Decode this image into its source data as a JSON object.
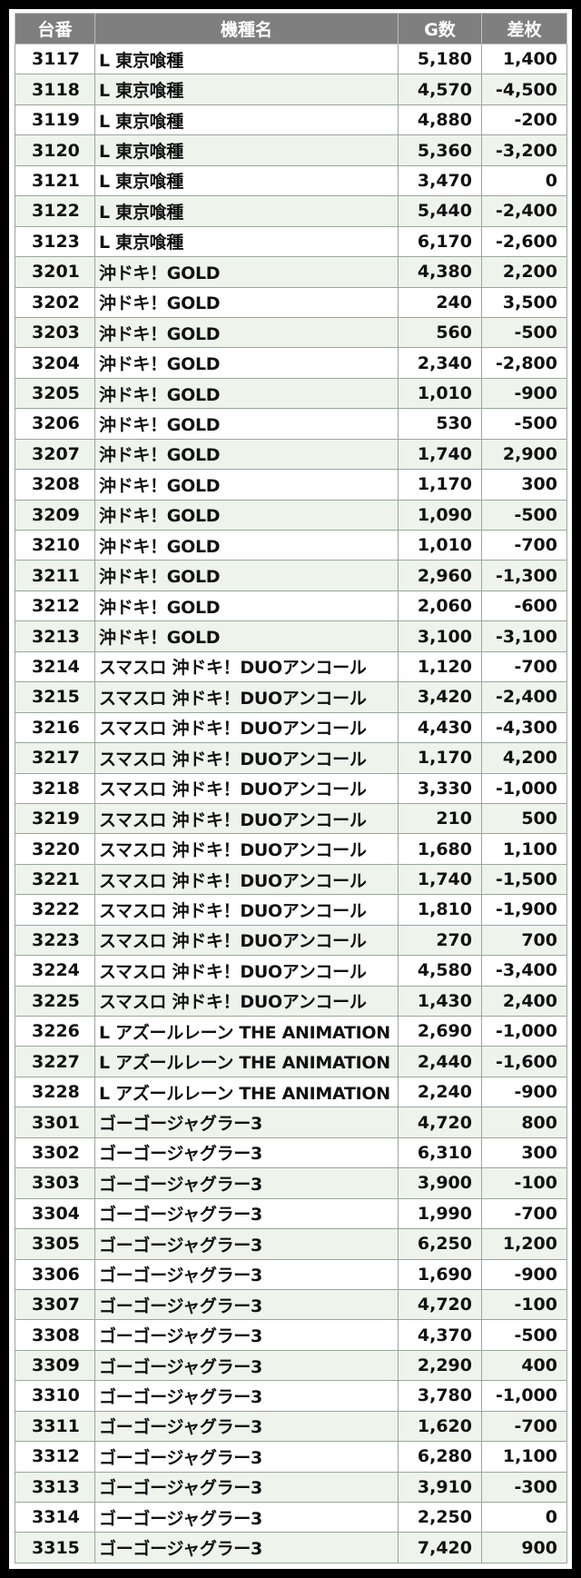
{
  "columns": {
    "no": "台番",
    "name": "機種名",
    "g": "G数",
    "diff": "差枚"
  },
  "rows": [
    {
      "no": "3117",
      "name": "L 東京喰種",
      "g": "5,180",
      "diff": "1,400"
    },
    {
      "no": "3118",
      "name": "L 東京喰種",
      "g": "4,570",
      "diff": "-4,500"
    },
    {
      "no": "3119",
      "name": "L 東京喰種",
      "g": "4,880",
      "diff": "-200"
    },
    {
      "no": "3120",
      "name": "L 東京喰種",
      "g": "5,360",
      "diff": "-3,200"
    },
    {
      "no": "3121",
      "name": "L 東京喰種",
      "g": "3,470",
      "diff": "0"
    },
    {
      "no": "3122",
      "name": "L 東京喰種",
      "g": "5,440",
      "diff": "-2,400"
    },
    {
      "no": "3123",
      "name": "L 東京喰種",
      "g": "6,170",
      "diff": "-2,600"
    },
    {
      "no": "3201",
      "name": "沖ドキ！GOLD",
      "g": "4,380",
      "diff": "2,200"
    },
    {
      "no": "3202",
      "name": "沖ドキ！GOLD",
      "g": "240",
      "diff": "3,500"
    },
    {
      "no": "3203",
      "name": "沖ドキ！GOLD",
      "g": "560",
      "diff": "-500"
    },
    {
      "no": "3204",
      "name": "沖ドキ！GOLD",
      "g": "2,340",
      "diff": "-2,800"
    },
    {
      "no": "3205",
      "name": "沖ドキ！GOLD",
      "g": "1,010",
      "diff": "-900"
    },
    {
      "no": "3206",
      "name": "沖ドキ！GOLD",
      "g": "530",
      "diff": "-500"
    },
    {
      "no": "3207",
      "name": "沖ドキ！GOLD",
      "g": "1,740",
      "diff": "2,900"
    },
    {
      "no": "3208",
      "name": "沖ドキ！GOLD",
      "g": "1,170",
      "diff": "300"
    },
    {
      "no": "3209",
      "name": "沖ドキ！GOLD",
      "g": "1,090",
      "diff": "-500"
    },
    {
      "no": "3210",
      "name": "沖ドキ！GOLD",
      "g": "1,010",
      "diff": "-700"
    },
    {
      "no": "3211",
      "name": "沖ドキ！GOLD",
      "g": "2,960",
      "diff": "-1,300"
    },
    {
      "no": "3212",
      "name": "沖ドキ！GOLD",
      "g": "2,060",
      "diff": "-600"
    },
    {
      "no": "3213",
      "name": "沖ドキ！GOLD",
      "g": "3,100",
      "diff": "-3,100"
    },
    {
      "no": "3214",
      "name": "スマスロ 沖ドキ！DUOアンコール",
      "g": "1,120",
      "diff": "-700"
    },
    {
      "no": "3215",
      "name": "スマスロ 沖ドキ！DUOアンコール",
      "g": "3,420",
      "diff": "-2,400"
    },
    {
      "no": "3216",
      "name": "スマスロ 沖ドキ！DUOアンコール",
      "g": "4,430",
      "diff": "-4,300"
    },
    {
      "no": "3217",
      "name": "スマスロ 沖ドキ！DUOアンコール",
      "g": "1,170",
      "diff": "4,200"
    },
    {
      "no": "3218",
      "name": "スマスロ 沖ドキ！DUOアンコール",
      "g": "3,330",
      "diff": "-1,000"
    },
    {
      "no": "3219",
      "name": "スマスロ 沖ドキ！DUOアンコール",
      "g": "210",
      "diff": "500"
    },
    {
      "no": "3220",
      "name": "スマスロ 沖ドキ！DUOアンコール",
      "g": "1,680",
      "diff": "1,100"
    },
    {
      "no": "3221",
      "name": "スマスロ 沖ドキ！DUOアンコール",
      "g": "1,740",
      "diff": "-1,500"
    },
    {
      "no": "3222",
      "name": "スマスロ 沖ドキ！DUOアンコール",
      "g": "1,810",
      "diff": "-1,900"
    },
    {
      "no": "3223",
      "name": "スマスロ 沖ドキ！DUOアンコール",
      "g": "270",
      "diff": "700"
    },
    {
      "no": "3224",
      "name": "スマスロ 沖ドキ！DUOアンコール",
      "g": "4,580",
      "diff": "-3,400"
    },
    {
      "no": "3225",
      "name": "スマスロ 沖ドキ！DUOアンコール",
      "g": "1,430",
      "diff": "2,400"
    },
    {
      "no": "3226",
      "name": "L アズールレーン THE ANIMATION",
      "g": "2,690",
      "diff": "-1,000"
    },
    {
      "no": "3227",
      "name": "L アズールレーン THE ANIMATION",
      "g": "2,440",
      "diff": "-1,600"
    },
    {
      "no": "3228",
      "name": "L アズールレーン THE ANIMATION",
      "g": "2,240",
      "diff": "-900"
    },
    {
      "no": "3301",
      "name": "ゴーゴージャグラー3",
      "g": "4,720",
      "diff": "800"
    },
    {
      "no": "3302",
      "name": "ゴーゴージャグラー3",
      "g": "6,310",
      "diff": "300"
    },
    {
      "no": "3303",
      "name": "ゴーゴージャグラー3",
      "g": "3,900",
      "diff": "-100"
    },
    {
      "no": "3304",
      "name": "ゴーゴージャグラー3",
      "g": "1,990",
      "diff": "-700"
    },
    {
      "no": "3305",
      "name": "ゴーゴージャグラー3",
      "g": "6,250",
      "diff": "1,200"
    },
    {
      "no": "3306",
      "name": "ゴーゴージャグラー3",
      "g": "1,690",
      "diff": "-900"
    },
    {
      "no": "3307",
      "name": "ゴーゴージャグラー3",
      "g": "4,720",
      "diff": "-100"
    },
    {
      "no": "3308",
      "name": "ゴーゴージャグラー3",
      "g": "4,370",
      "diff": "-500"
    },
    {
      "no": "3309",
      "name": "ゴーゴージャグラー3",
      "g": "2,290",
      "diff": "400"
    },
    {
      "no": "3310",
      "name": "ゴーゴージャグラー3",
      "g": "3,780",
      "diff": "-1,000"
    },
    {
      "no": "3311",
      "name": "ゴーゴージャグラー3",
      "g": "1,620",
      "diff": "-700"
    },
    {
      "no": "3312",
      "name": "ゴーゴージャグラー3",
      "g": "6,280",
      "diff": "1,100"
    },
    {
      "no": "3313",
      "name": "ゴーゴージャグラー3",
      "g": "3,910",
      "diff": "-300"
    },
    {
      "no": "3314",
      "name": "ゴーゴージャグラー3",
      "g": "2,250",
      "diff": "0"
    },
    {
      "no": "3315",
      "name": "ゴーゴージャグラー3",
      "g": "7,420",
      "diff": "900"
    }
  ],
  "colors": {
    "header_bg": "#7f7f7f",
    "header_text": "#ffffff",
    "row_alt_bg": "#eef3ec",
    "frame_bg": "#000000"
  }
}
